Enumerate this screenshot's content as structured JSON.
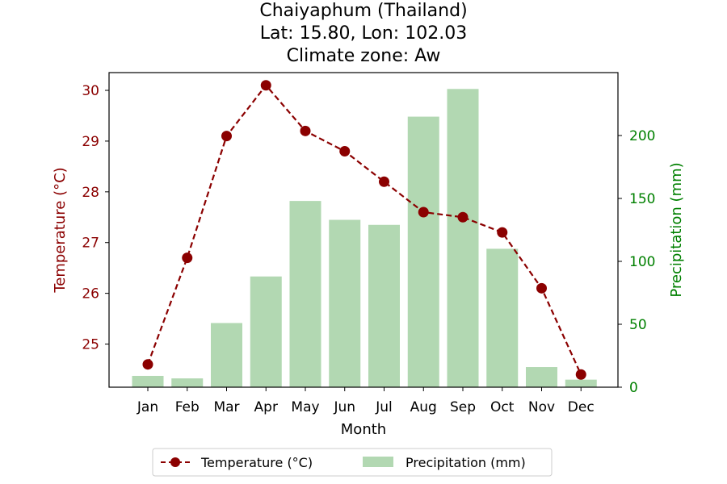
{
  "title_lines": [
    "Chaiyaphum (Thailand)",
    "Lat: 15.80, Lon: 102.03",
    "Climate zone: Aw"
  ],
  "colors": {
    "temperature": "#8b0000",
    "precip": "#b2d8b2",
    "precip_axis": "#008000"
  },
  "chart_data": {
    "type": "bar+line",
    "title": "Chaiyaphum (Thailand)\nLat: 15.80, Lon: 102.03\nClimate zone: Aw",
    "categories": [
      "Jan",
      "Feb",
      "Mar",
      "Apr",
      "May",
      "Jun",
      "Jul",
      "Aug",
      "Sep",
      "Oct",
      "Nov",
      "Dec"
    ],
    "xlabel": "Month",
    "ylabel_left": "Temperature (°C)",
    "ylabel_right": "Precipitation (mm)",
    "ylim_left": [
      24.15,
      30.35
    ],
    "ylim_right": [
      0,
      250
    ],
    "yticks_left": [
      "25",
      "26",
      "27",
      "28",
      "29",
      "30"
    ],
    "yticks_right": [
      "0",
      "50",
      "100",
      "150",
      "200"
    ],
    "series": [
      {
        "name": "Temperature (°C)",
        "type": "line",
        "axis": "left",
        "values": [
          24.6,
          26.7,
          29.1,
          30.1,
          29.2,
          28.8,
          28.2,
          27.6,
          27.5,
          27.2,
          26.1,
          24.4
        ]
      },
      {
        "name": "Precipitation (mm)",
        "type": "bar",
        "axis": "right",
        "values": [
          9,
          7,
          51,
          88,
          148,
          133,
          129,
          215,
          237,
          110,
          16,
          6
        ]
      }
    ],
    "legend": "bottom-center",
    "grid": false
  }
}
